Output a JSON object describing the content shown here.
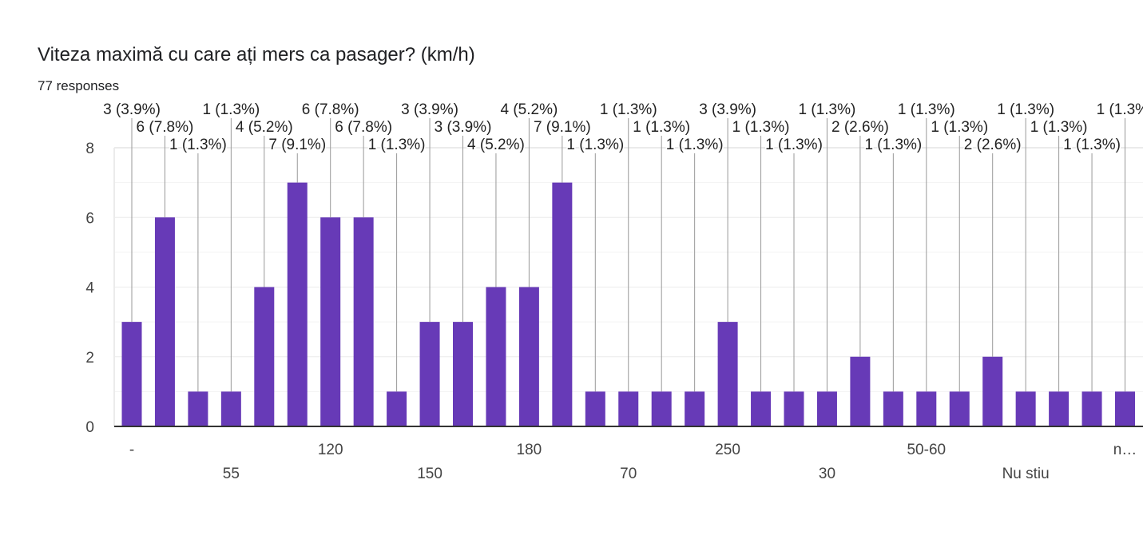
{
  "title": "Viteza maximă cu care ați mers ca pasager? (km/h)",
  "responses": "77 responses",
  "chart_data": {
    "type": "bar",
    "title": "Viteza maximă cu care ați mers ca pasager? (km/h)",
    "total": 77,
    "categories": [
      "-",
      "",
      "",
      "55",
      "",
      "",
      "120",
      "",
      "",
      "150",
      "",
      "",
      "180",
      "",
      "",
      "70",
      "",
      "",
      "250",
      "",
      "",
      "30",
      "",
      "",
      "50-60",
      "",
      "",
      "Nu stiu",
      "",
      "",
      "n…"
    ],
    "values": [
      3,
      6,
      1,
      1,
      4,
      7,
      6,
      6,
      1,
      3,
      3,
      4,
      4,
      7,
      1,
      1,
      1,
      1,
      3,
      1,
      1,
      1,
      2,
      1,
      1,
      1,
      2,
      1,
      1,
      1,
      1
    ],
    "ylim": [
      0,
      8
    ],
    "yticks": [
      0,
      2,
      4,
      6,
      8
    ],
    "grid": true,
    "bar_color": "#673ab7",
    "data_label_format": "count (percent%)"
  }
}
